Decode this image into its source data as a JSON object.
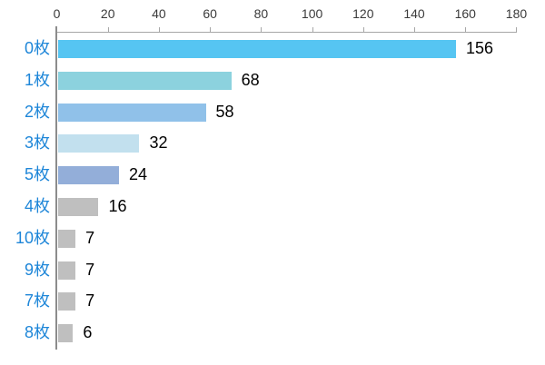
{
  "chart_data": {
    "type": "bar",
    "orientation": "horizontal",
    "title": "",
    "categories": [
      "0枚",
      "1枚",
      "2枚",
      "3枚",
      "5枚",
      "4枚",
      "10枚",
      "9枚",
      "7枚",
      "8枚"
    ],
    "values": [
      156,
      68,
      58,
      32,
      24,
      16,
      7,
      7,
      7,
      6
    ],
    "data_labels": [
      "156",
      "68",
      "58",
      "32",
      "24",
      "16",
      "7",
      "7",
      "7",
      "6"
    ],
    "bar_colors": [
      "#56C5F2",
      "#8CD2DE",
      "#90C1E9",
      "#C2E0EE",
      "#93AED9",
      "#BFBFBF",
      "#BFBFBF",
      "#BFBFBF",
      "#BFBFBF",
      "#BFBFBF"
    ],
    "x_axis": {
      "position": "top",
      "min": 0,
      "max": 180,
      "tick_interval": 20,
      "tick_values": [
        0,
        20,
        40,
        60,
        80,
        100,
        120,
        140,
        160,
        180
      ],
      "tick_labels": [
        "0",
        "20",
        "40",
        "60",
        "80",
        "100",
        "120",
        "140",
        "160",
        "180"
      ]
    },
    "grid": false,
    "legend": false,
    "styles": {
      "category_label_color": "#1E86D8",
      "value_label_color": "#000000",
      "tick_label_color": "#3B3B3B",
      "value_axis_line_color": "#A6A6A6",
      "category_axis_line_color": "#8C8C8C",
      "gray_bar_color": "#BFBFBF",
      "background": "#FFFFFF"
    }
  }
}
